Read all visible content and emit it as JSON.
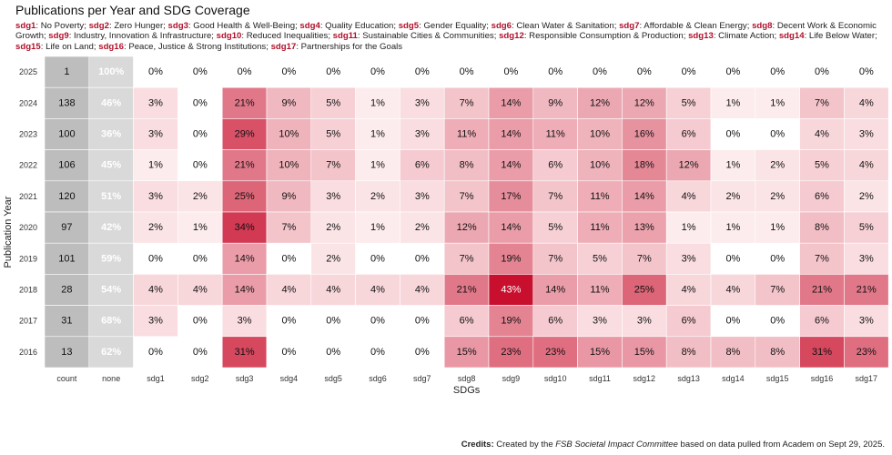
{
  "title": "Publications per Year and SDG Coverage",
  "legend": [
    {
      "code": "sdg1",
      "name": "No Poverty"
    },
    {
      "code": "sdg2",
      "name": "Zero Hunger"
    },
    {
      "code": "sdg3",
      "name": "Good Health & Well-Being"
    },
    {
      "code": "sdg4",
      "name": "Quality Education"
    },
    {
      "code": "sdg5",
      "name": "Gender Equality"
    },
    {
      "code": "sdg6",
      "name": "Clean Water & Sanitation"
    },
    {
      "code": "sdg7",
      "name": "Affordable & Clean Energy"
    },
    {
      "code": "sdg8",
      "name": "Decent Work & Economic Growth"
    },
    {
      "code": "sdg9",
      "name": "Industry, Innovation & Infrastructure"
    },
    {
      "code": "sdg10",
      "name": "Reduced Inequalities"
    },
    {
      "code": "sdg11",
      "name": "Sustainable Cities & Communities"
    },
    {
      "code": "sdg12",
      "name": "Responsible Consumption & Production"
    },
    {
      "code": "sdg13",
      "name": "Climate Action"
    },
    {
      "code": "sdg14",
      "name": "Life Below Water"
    },
    {
      "code": "sdg15",
      "name": "Life on Land"
    },
    {
      "code": "sdg16",
      "name": "Peace, Justice & Strong Institutions"
    },
    {
      "code": "sdg17",
      "name": "Partnerships for the Goals"
    }
  ],
  "credits": {
    "bold": "Credits:",
    "text1": " Created by the ",
    "italic": "FSB Societal Impact Committee",
    "text2": " based on data pulled from Academ on Sept 29, 2025."
  },
  "colors": {
    "count_cell": "#bdbdbd",
    "none_cell": "#d9d9d9",
    "heat_low": "#fff5f5",
    "heat_high": "#c8102e"
  },
  "chart_data": {
    "type": "heatmap",
    "xlabel": "SDGs",
    "ylabel": "Publication Year",
    "columns": [
      "count",
      "none",
      "sdg1",
      "sdg2",
      "sdg3",
      "sdg4",
      "sdg5",
      "sdg6",
      "sdg7",
      "sdg8",
      "sdg9",
      "sdg10",
      "sdg11",
      "sdg12",
      "sdg13",
      "sdg14",
      "sdg15",
      "sdg16",
      "sdg17"
    ],
    "rows": [
      {
        "year": "2025",
        "count": 1,
        "none": 100,
        "sdg": [
          0,
          0,
          0,
          0,
          0,
          0,
          0,
          0,
          0,
          0,
          0,
          0,
          0,
          0,
          0,
          0,
          0
        ]
      },
      {
        "year": "2024",
        "count": 138,
        "none": 46,
        "sdg": [
          3,
          0,
          21,
          9,
          5,
          1,
          3,
          7,
          14,
          9,
          12,
          12,
          5,
          1,
          1,
          7,
          4
        ]
      },
      {
        "year": "2023",
        "count": 100,
        "none": 36,
        "sdg": [
          3,
          0,
          29,
          10,
          5,
          1,
          3,
          11,
          14,
          11,
          10,
          16,
          6,
          0,
          0,
          4,
          3
        ]
      },
      {
        "year": "2022",
        "count": 106,
        "none": 45,
        "sdg": [
          1,
          0,
          21,
          10,
          7,
          1,
          6,
          8,
          14,
          6,
          10,
          18,
          12,
          1,
          2,
          5,
          4
        ]
      },
      {
        "year": "2021",
        "count": 120,
        "none": 51,
        "sdg": [
          3,
          2,
          25,
          9,
          3,
          2,
          3,
          7,
          17,
          7,
          11,
          14,
          4,
          2,
          2,
          6,
          2
        ]
      },
      {
        "year": "2020",
        "count": 97,
        "none": 42,
        "sdg": [
          2,
          1,
          34,
          7,
          2,
          1,
          2,
          12,
          14,
          5,
          11,
          13,
          1,
          1,
          1,
          8,
          5
        ]
      },
      {
        "year": "2019",
        "count": 101,
        "none": 59,
        "sdg": [
          0,
          0,
          14,
          0,
          2,
          0,
          0,
          7,
          19,
          7,
          5,
          7,
          3,
          0,
          0,
          7,
          3
        ]
      },
      {
        "year": "2018",
        "count": 28,
        "none": 54,
        "sdg": [
          4,
          4,
          14,
          4,
          4,
          4,
          4,
          21,
          43,
          14,
          11,
          25,
          4,
          4,
          7,
          21,
          21
        ]
      },
      {
        "year": "2017",
        "count": 31,
        "none": 68,
        "sdg": [
          3,
          0,
          3,
          0,
          0,
          0,
          0,
          6,
          19,
          6,
          3,
          3,
          6,
          0,
          0,
          6,
          3
        ]
      },
      {
        "year": "2016",
        "count": 13,
        "none": 62,
        "sdg": [
          0,
          0,
          31,
          0,
          0,
          0,
          0,
          15,
          23,
          23,
          15,
          15,
          8,
          8,
          8,
          31,
          23
        ]
      }
    ],
    "value_suffix": "%",
    "grid": false
  }
}
